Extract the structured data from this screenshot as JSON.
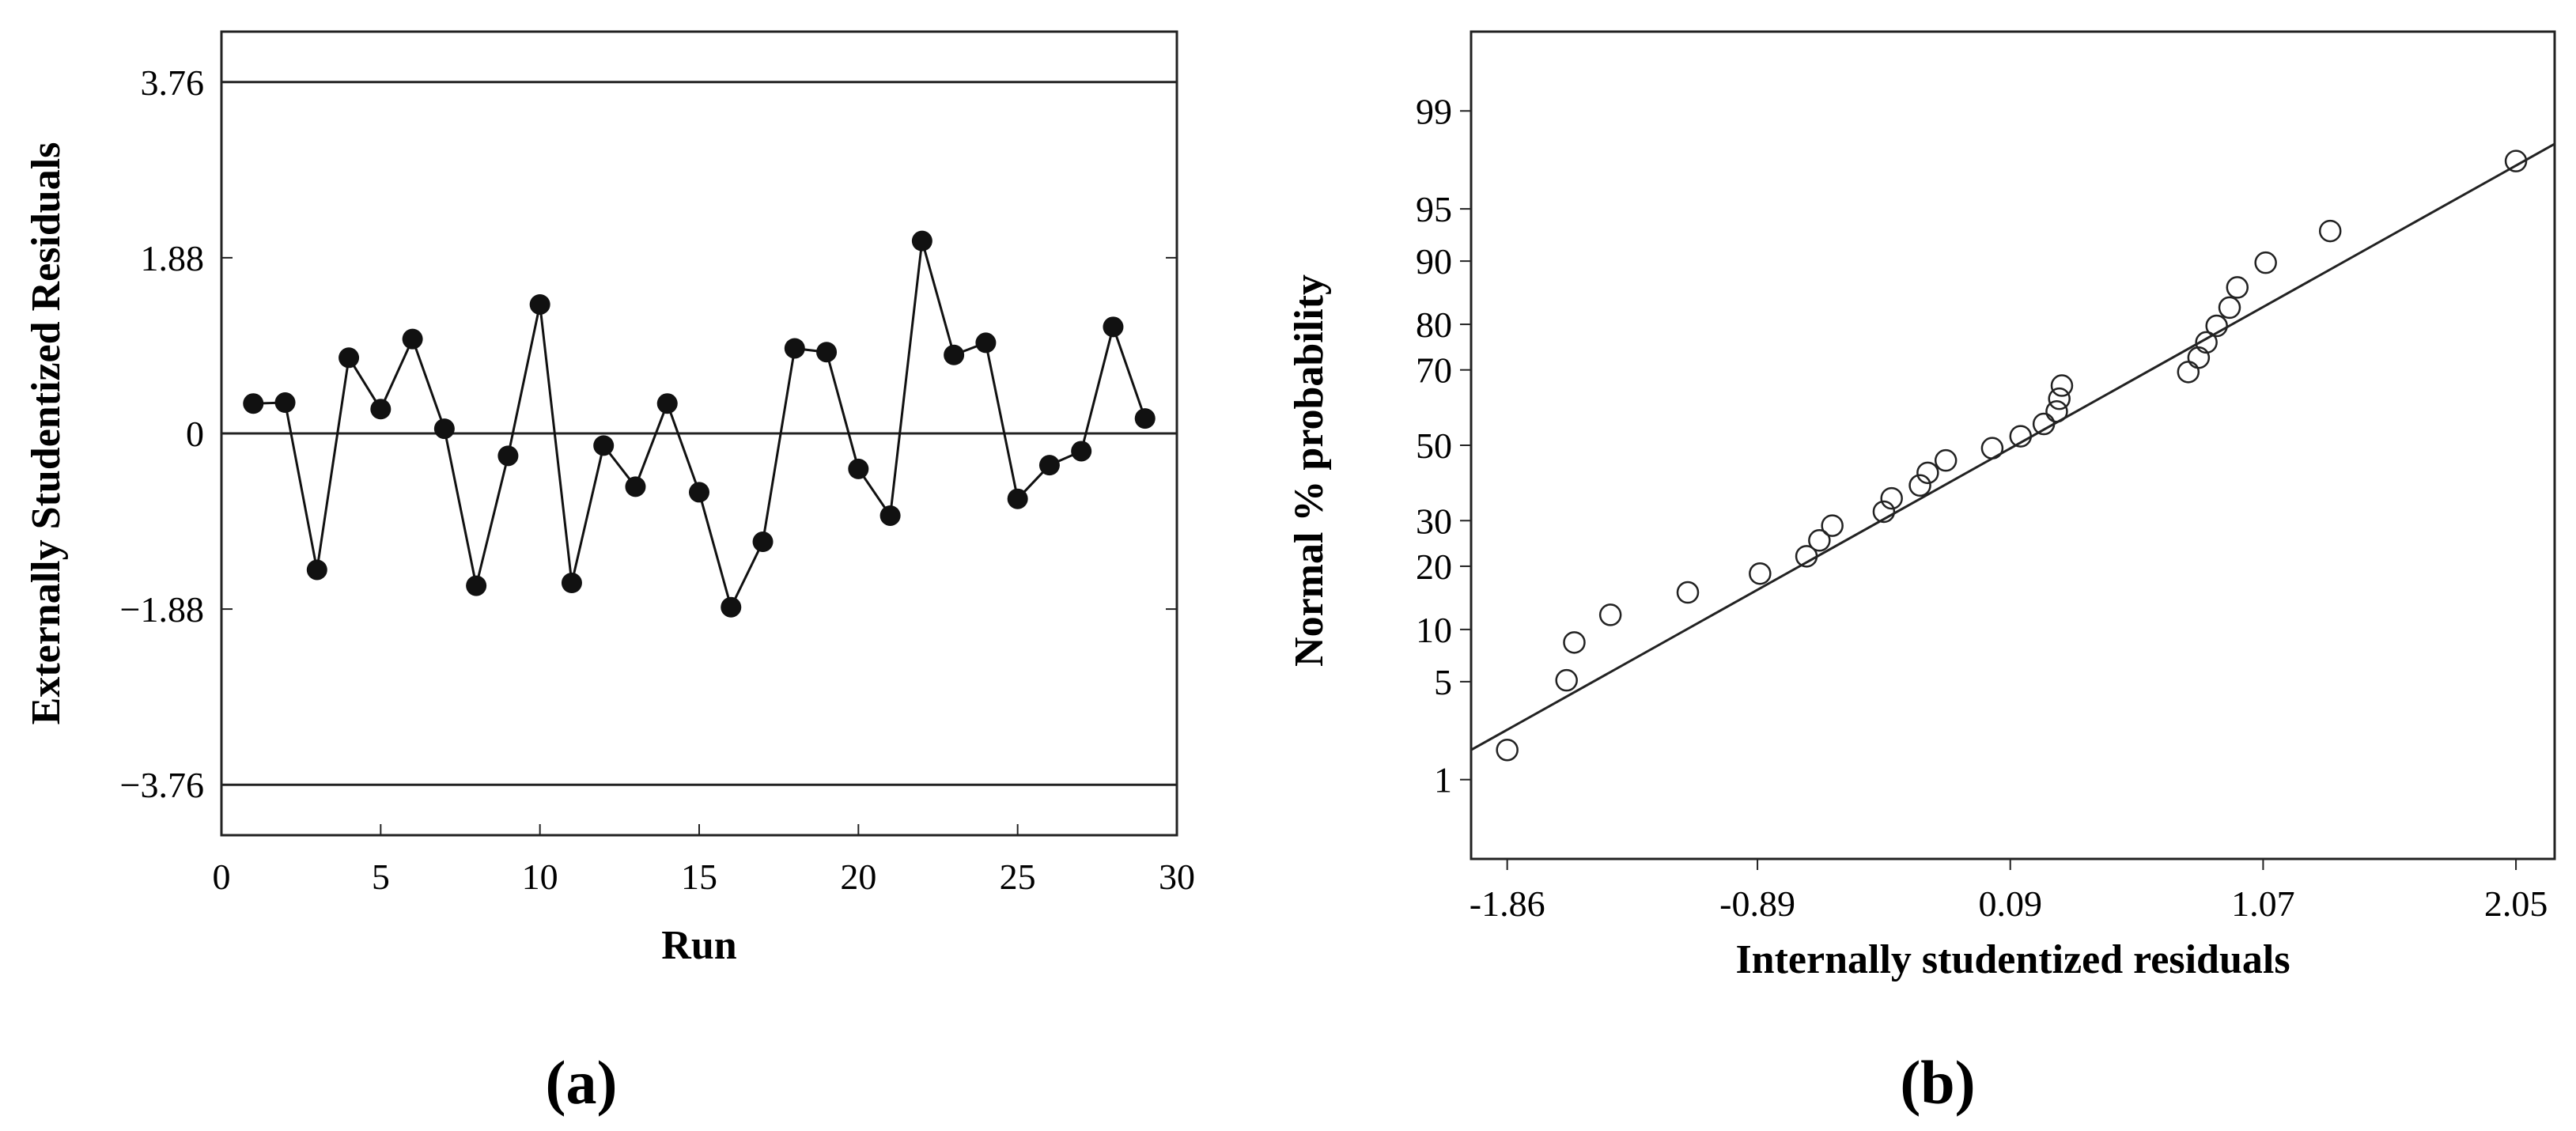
{
  "colors": {
    "axis": "#222222",
    "marker_fill": "#111111",
    "background": "#ffffff"
  },
  "chart_data": [
    {
      "type": "line",
      "panel_label": "(a)",
      "xlabel": "Run",
      "ylabel": "Externally Studentized Residuals",
      "xlim": [
        0,
        30
      ],
      "ylim": [
        -4.3,
        4.3
      ],
      "xticks": [
        0,
        5,
        10,
        15,
        20,
        25,
        30
      ],
      "xtick_labels": [
        "0",
        "5",
        "10",
        "15",
        "20",
        "25",
        "30"
      ],
      "yticks": [
        -3.76,
        -1.88,
        0,
        1.88,
        3.76
      ],
      "ytick_labels": [
        "−3.76",
        "−1.88",
        "0",
        "1.88",
        "3.76"
      ],
      "reference_lines": [
        3.76,
        0,
        -3.76
      ],
      "marker": "filled-circle",
      "grid": false,
      "series": [
        {
          "x": [
            1,
            2,
            3,
            4,
            5,
            6,
            7,
            8,
            9,
            10,
            11,
            12,
            13,
            14,
            15,
            16,
            17,
            18,
            19,
            20,
            21,
            22,
            23,
            24,
            25,
            26,
            27,
            28,
            29
          ],
          "y": [
            0.32,
            0.33,
            -1.46,
            0.81,
            0.26,
            1.01,
            0.05,
            -1.63,
            -0.24,
            1.38,
            -1.6,
            -0.13,
            -0.57,
            0.32,
            -0.63,
            -1.86,
            -1.16,
            0.91,
            0.87,
            -0.38,
            -0.88,
            2.06,
            0.84,
            0.97,
            -0.7,
            -0.34,
            -0.19,
            1.14,
            0.16
          ]
        }
      ]
    },
    {
      "type": "scatter",
      "panel_label": "(b)",
      "xlabel": "Internally studentized residuals",
      "ylabel": "Normal % probability",
      "xlim": [
        -2.0,
        2.2
      ],
      "y_scale": "normal-probability",
      "ylim": [
        0.2,
        99.8
      ],
      "xticks": [
        -1.86,
        -0.89,
        0.09,
        1.07,
        2.05
      ],
      "xtick_labels": [
        "-1.86",
        "-0.89",
        "0.09",
        "1.07",
        "2.05"
      ],
      "yticks": [
        1,
        5,
        10,
        20,
        30,
        50,
        70,
        80,
        90,
        95,
        99
      ],
      "ytick_labels": [
        "1",
        "5",
        "10",
        "20",
        "30",
        "50",
        "70",
        "80",
        "90",
        "95",
        "99"
      ],
      "marker": "open-circle",
      "grid": false,
      "points": [
        {
          "x": -1.86,
          "y": 1.7
        },
        {
          "x": -1.63,
          "y": 5.1
        },
        {
          "x": -1.6,
          "y": 8.5
        },
        {
          "x": -1.46,
          "y": 11.9
        },
        {
          "x": -1.16,
          "y": 15.3
        },
        {
          "x": -0.88,
          "y": 18.6
        },
        {
          "x": -0.7,
          "y": 22.0
        },
        {
          "x": -0.65,
          "y": 25.4
        },
        {
          "x": -0.6,
          "y": 28.8
        },
        {
          "x": -0.4,
          "y": 32.2
        },
        {
          "x": -0.37,
          "y": 35.6
        },
        {
          "x": -0.26,
          "y": 39.0
        },
        {
          "x": -0.23,
          "y": 42.4
        },
        {
          "x": -0.16,
          "y": 45.8
        },
        {
          "x": 0.02,
          "y": 49.2
        },
        {
          "x": 0.13,
          "y": 52.5
        },
        {
          "x": 0.22,
          "y": 55.9
        },
        {
          "x": 0.27,
          "y": 59.3
        },
        {
          "x": 0.28,
          "y": 62.7
        },
        {
          "x": 0.29,
          "y": 66.1
        },
        {
          "x": 0.78,
          "y": 69.5
        },
        {
          "x": 0.82,
          "y": 72.9
        },
        {
          "x": 0.85,
          "y": 76.3
        },
        {
          "x": 0.89,
          "y": 79.7
        },
        {
          "x": 0.94,
          "y": 83.1
        },
        {
          "x": 0.97,
          "y": 86.4
        },
        {
          "x": 1.08,
          "y": 89.8
        },
        {
          "x": 1.33,
          "y": 93.2
        },
        {
          "x": 2.05,
          "y": 97.6
        }
      ],
      "fit_line": [
        [
          -2.0,
          1.7
        ],
        [
          2.2,
          98.2
        ]
      ]
    }
  ]
}
